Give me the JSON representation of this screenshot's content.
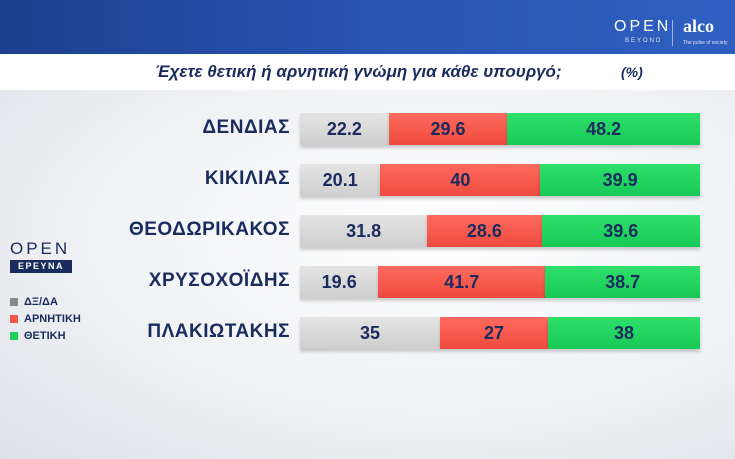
{
  "branding": {
    "top_logo_main": "OPEN",
    "top_logo_sub": "BEYOND",
    "partner_logo": "alco",
    "partner_sub": "The pulse of society",
    "side_logo": "OPEN",
    "side_logo_sub": "ΕΡΕΥΝΑ"
  },
  "colors": {
    "dk_na": "#d6d6d6",
    "negative": "#f2564b",
    "positive": "#1fd05e",
    "text": "#1a2b5e",
    "header": "#2a56b3"
  },
  "chart_data": {
    "type": "bar",
    "orientation": "horizontal",
    "stacked": true,
    "title": "Έχετε θετική ή αρνητική γνώμη για κάθε υπουργό;",
    "unit": "(%)",
    "categories": [
      "ΔΕΝΔΙΑΣ",
      "ΚΙΚΙΛΙΑΣ",
      "ΘΕΟΔΩΡΙΚΑΚΟΣ",
      "ΧΡΥΣΟΧΟΪΔΗΣ",
      "ΠΛΑΚΙΩΤΑΚΗΣ"
    ],
    "series": [
      {
        "name": "ΔΞ/ΔΑ",
        "values": [
          22.2,
          20.1,
          31.8,
          19.6,
          35
        ]
      },
      {
        "name": "ΑΡΝΗΤΙΚΗ",
        "values": [
          29.6,
          40,
          28.6,
          41.7,
          27
        ]
      },
      {
        "name": "ΘΕΤΙΚΗ",
        "values": [
          48.2,
          39.9,
          39.6,
          38.7,
          38
        ]
      }
    ],
    "labels": [
      [
        "22.2",
        "29.6",
        "48.2"
      ],
      [
        "20.1",
        "40",
        "39.9"
      ],
      [
        "31.8",
        "28.6",
        "39.6"
      ],
      [
        "19.6",
        "41.7",
        "38.7"
      ],
      [
        "35",
        "27",
        "38"
      ]
    ],
    "xlim": [
      0,
      100
    ],
    "legend_position": "left"
  }
}
